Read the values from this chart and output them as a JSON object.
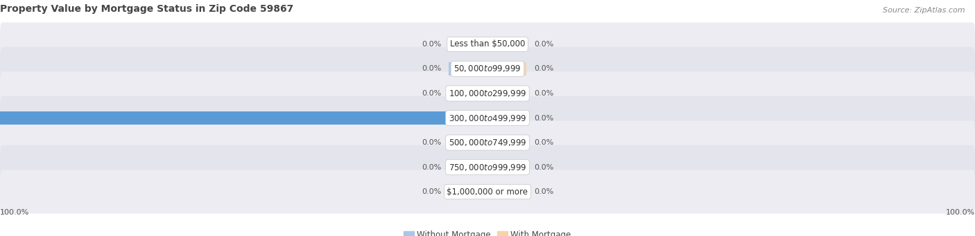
{
  "title": "Property Value by Mortgage Status in Zip Code 59867",
  "source": "Source: ZipAtlas.com",
  "categories": [
    "Less than $50,000",
    "$50,000 to $99,999",
    "$100,000 to $299,999",
    "$300,000 to $499,999",
    "$500,000 to $749,999",
    "$750,000 to $999,999",
    "$1,000,000 or more"
  ],
  "without_mortgage": [
    0.0,
    0.0,
    0.0,
    100.0,
    0.0,
    0.0,
    0.0
  ],
  "with_mortgage": [
    0.0,
    0.0,
    0.0,
    0.0,
    0.0,
    0.0,
    0.0
  ],
  "without_mortgage_color_full": "#5b9bd5",
  "without_mortgage_color_stub": "#a8c8e8",
  "with_mortgage_color_stub": "#f5d5a8",
  "title_color": "#444444",
  "source_color": "#888888",
  "label_color": "#555555",
  "category_color": "#333333",
  "row_bg_odd": "#ececf2",
  "row_bg_even": "#e4e4ec",
  "title_fontsize": 10,
  "source_fontsize": 8,
  "label_fontsize": 8,
  "category_fontsize": 8.5,
  "legend_fontsize": 8.5,
  "x_axis_left_label": "100.0%",
  "x_axis_right_label": "100.0%",
  "stub_size": 8,
  "xlim_left": -100,
  "xlim_right": 100,
  "figsize": [
    14.06,
    3.41
  ],
  "dpi": 100
}
